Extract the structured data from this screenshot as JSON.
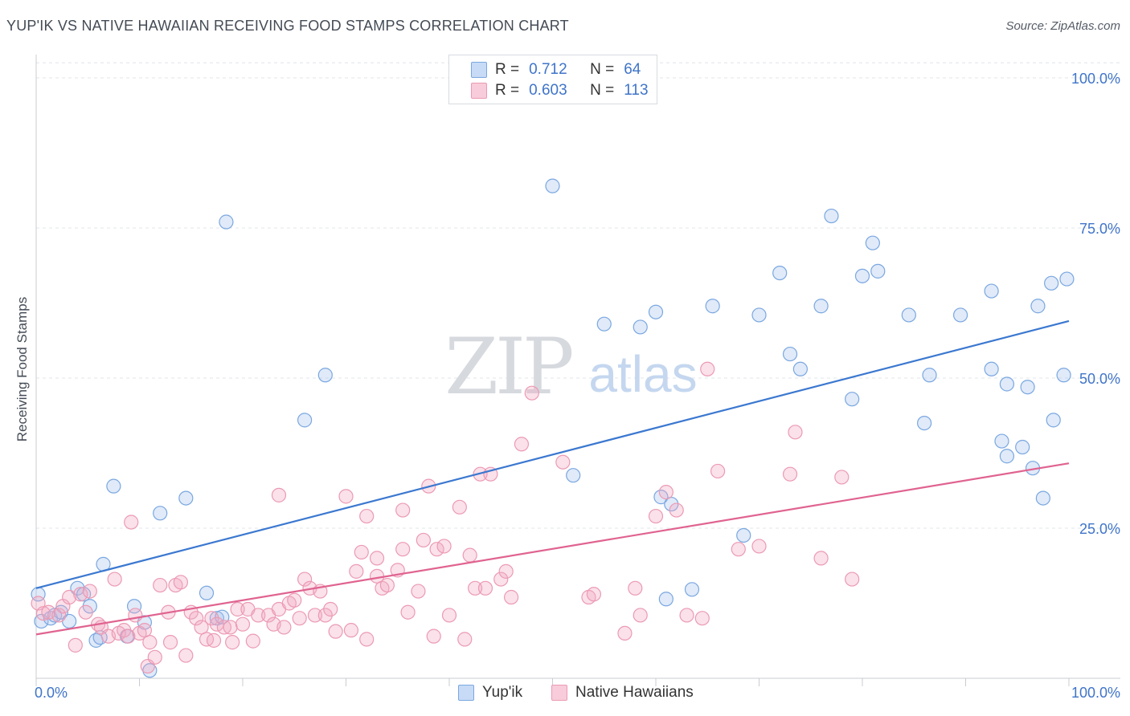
{
  "title": "YUP'IK VS NATIVE HAWAIIAN RECEIVING FOOD STAMPS CORRELATION CHART",
  "source": "Source: ZipAtlas.com",
  "watermark": {
    "zip": "ZIP",
    "atlas": "atlas"
  },
  "legend_top": {
    "rows": [
      {
        "r_label": "R =",
        "r_value": "0.712",
        "n_label": "N =",
        "n_value": "64",
        "color": "#7aa7e0"
      },
      {
        "r_label": "R =",
        "r_value": "0.603",
        "n_label": "N =",
        "n_value": "113",
        "color": "#ec9ab3"
      }
    ]
  },
  "chart_data": {
    "type": "scatter",
    "title": "YUP'IK VS NATIVE HAWAIIAN RECEIVING FOOD STAMPS CORRELATION CHART",
    "xlabel": "",
    "ylabel": "Receiving Food Stamps",
    "xlim": [
      0,
      100
    ],
    "ylim": [
      0,
      102.5
    ],
    "x_tick_labels": [
      "0.0%",
      "100.0%"
    ],
    "y_tick_labels": [
      "100.0%",
      "75.0%",
      "50.0%",
      "25.0%"
    ],
    "y_ticks": [
      100,
      75,
      50,
      25
    ],
    "grid": "horizontal dashed",
    "legend_position": "bottom",
    "series": [
      {
        "name": "Yup'ik",
        "color": "#7aa7e0",
        "trend_color": "#3b78d0",
        "trend": {
          "x": [
            0,
            100
          ],
          "y": [
            15,
            59.5
          ]
        },
        "points": [
          [
            0.2,
            14
          ],
          [
            0.5,
            9.5
          ],
          [
            1.4,
            10
          ],
          [
            1.8,
            10.5
          ],
          [
            2.4,
            11
          ],
          [
            3.2,
            9.5
          ],
          [
            4,
            15
          ],
          [
            4.6,
            14
          ],
          [
            5.2,
            12
          ],
          [
            5.8,
            6.3
          ],
          [
            6.2,
            6.8
          ],
          [
            6.5,
            19
          ],
          [
            7.5,
            32
          ],
          [
            8.8,
            7
          ],
          [
            9.5,
            12
          ],
          [
            10.5,
            9.3
          ],
          [
            11,
            1.3
          ],
          [
            12,
            27.5
          ],
          [
            14.5,
            30
          ],
          [
            16.5,
            14.2
          ],
          [
            17.5,
            10
          ],
          [
            18.4,
            76
          ],
          [
            18,
            10.2
          ],
          [
            26,
            43
          ],
          [
            28,
            50.5
          ],
          [
            52,
            33.8
          ],
          [
            50,
            82
          ],
          [
            55,
            59
          ],
          [
            58.5,
            58.5
          ],
          [
            60,
            61
          ],
          [
            60.5,
            30.2
          ],
          [
            61,
            13.2
          ],
          [
            61.5,
            29
          ],
          [
            63.5,
            14.8
          ],
          [
            65.5,
            62
          ],
          [
            68.5,
            23.8
          ],
          [
            70,
            60.5
          ],
          [
            72,
            67.5
          ],
          [
            73,
            54
          ],
          [
            74,
            51.5
          ],
          [
            76,
            62
          ],
          [
            77,
            77
          ],
          [
            79,
            46.5
          ],
          [
            80,
            67
          ],
          [
            81,
            72.5
          ],
          [
            81.5,
            67.8
          ],
          [
            84.5,
            60.5
          ],
          [
            86,
            42.5
          ],
          [
            86.5,
            50.5
          ],
          [
            89.5,
            60.5
          ],
          [
            92.5,
            51.5
          ],
          [
            92.5,
            64.5
          ],
          [
            93.5,
            39.5
          ],
          [
            94,
            37
          ],
          [
            94,
            49
          ],
          [
            95.5,
            38.5
          ],
          [
            96,
            48.5
          ],
          [
            96.5,
            35
          ],
          [
            97,
            62
          ],
          [
            97.5,
            30
          ],
          [
            98.3,
            65.8
          ],
          [
            98.5,
            43
          ],
          [
            99.5,
            50.5
          ],
          [
            99.8,
            66.5
          ]
        ]
      },
      {
        "name": "Native Hawaiians",
        "color": "#ec9ab3",
        "trend_color": "#e06390",
        "trend": {
          "x": [
            0,
            100
          ],
          "y": [
            7.3,
            35.8
          ]
        },
        "points": [
          [
            0.2,
            12.5
          ],
          [
            0.7,
            10.8
          ],
          [
            1.2,
            11
          ],
          [
            2.2,
            10.5
          ],
          [
            2.6,
            12
          ],
          [
            3.2,
            13.5
          ],
          [
            3.8,
            5.5
          ],
          [
            4.3,
            14
          ],
          [
            4.8,
            11
          ],
          [
            5.2,
            14.5
          ],
          [
            6,
            9
          ],
          [
            6.3,
            8.5
          ],
          [
            7,
            7
          ],
          [
            7.6,
            16.5
          ],
          [
            8,
            7.5
          ],
          [
            8.5,
            8
          ],
          [
            8.9,
            7
          ],
          [
            9.2,
            26
          ],
          [
            9.6,
            10.5
          ],
          [
            10,
            7.5
          ],
          [
            10.5,
            8
          ],
          [
            10.8,
            2
          ],
          [
            11,
            6
          ],
          [
            11.5,
            3.5
          ],
          [
            12,
            15.5
          ],
          [
            12.8,
            11
          ],
          [
            13,
            6
          ],
          [
            13.5,
            15.5
          ],
          [
            14,
            16
          ],
          [
            14.5,
            3.8
          ],
          [
            15,
            11
          ],
          [
            15.5,
            10
          ],
          [
            16,
            8.5
          ],
          [
            16.5,
            6.5
          ],
          [
            17,
            10
          ],
          [
            17.2,
            6.3
          ],
          [
            17.5,
            9
          ],
          [
            18.2,
            8.5
          ],
          [
            18.8,
            8.5
          ],
          [
            19,
            6
          ],
          [
            19.5,
            11.5
          ],
          [
            20,
            9
          ],
          [
            20.5,
            11.5
          ],
          [
            21,
            6.2
          ],
          [
            21.5,
            10.5
          ],
          [
            22.5,
            10.5
          ],
          [
            23,
            9
          ],
          [
            23.5,
            11.5
          ],
          [
            23.5,
            30.5
          ],
          [
            24,
            8.5
          ],
          [
            24.5,
            12.5
          ],
          [
            25,
            13
          ],
          [
            25.5,
            10
          ],
          [
            26,
            16.5
          ],
          [
            26.5,
            15
          ],
          [
            27,
            10.5
          ],
          [
            27.5,
            14.5
          ],
          [
            28,
            10.5
          ],
          [
            28.5,
            11.5
          ],
          [
            29,
            7.8
          ],
          [
            30,
            30.3
          ],
          [
            30.5,
            8
          ],
          [
            31,
            17.8
          ],
          [
            31.5,
            21
          ],
          [
            32,
            27
          ],
          [
            32,
            6.5
          ],
          [
            33,
            17
          ],
          [
            33,
            20
          ],
          [
            33.5,
            15
          ],
          [
            34,
            15.5
          ],
          [
            35,
            18
          ],
          [
            35.5,
            21.5
          ],
          [
            35.5,
            28
          ],
          [
            36,
            11
          ],
          [
            37,
            14.5
          ],
          [
            37.5,
            23
          ],
          [
            38,
            32
          ],
          [
            38.5,
            7
          ],
          [
            38.8,
            21.5
          ],
          [
            39.5,
            22
          ],
          [
            40,
            10.5
          ],
          [
            41,
            28.5
          ],
          [
            41.5,
            6.5
          ],
          [
            42,
            20.5
          ],
          [
            42.5,
            15
          ],
          [
            43,
            34
          ],
          [
            43.5,
            15
          ],
          [
            44,
            34
          ],
          [
            45,
            16.5
          ],
          [
            45.5,
            17.8
          ],
          [
            46,
            13.5
          ],
          [
            47,
            39
          ],
          [
            48,
            47.5
          ],
          [
            51,
            36
          ],
          [
            53.5,
            13.5
          ],
          [
            54,
            14
          ],
          [
            57,
            7.5
          ],
          [
            58,
            15
          ],
          [
            58.5,
            10.5
          ],
          [
            60,
            27
          ],
          [
            61,
            31
          ],
          [
            62,
            28
          ],
          [
            63,
            10.5
          ],
          [
            64.5,
            10
          ],
          [
            65,
            51.5
          ],
          [
            66,
            34.5
          ],
          [
            68,
            21.5
          ],
          [
            70,
            22
          ],
          [
            73,
            34
          ],
          [
            73.5,
            41
          ],
          [
            76,
            20
          ],
          [
            78,
            33.5
          ],
          [
            79,
            16.5
          ]
        ]
      }
    ]
  },
  "bottom_legend": [
    {
      "label": "Yup'ik",
      "color": "#7aa7e0"
    },
    {
      "label": "Native Hawaiians",
      "color": "#ec9ab3"
    }
  ]
}
